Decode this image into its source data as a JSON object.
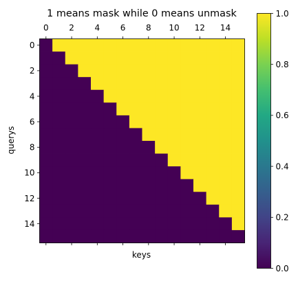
{
  "chart_data": {
    "type": "heatmap",
    "title": "1 means mask while 0 means unmask",
    "xlabel": "keys",
    "ylabel": "querys",
    "rows": 16,
    "cols": 16,
    "rule": "value = 1 where key index > query index, else 0 (upper-triangular mask)",
    "values": [
      [
        0,
        1,
        1,
        1,
        1,
        1,
        1,
        1,
        1,
        1,
        1,
        1,
        1,
        1,
        1,
        1
      ],
      [
        0,
        0,
        1,
        1,
        1,
        1,
        1,
        1,
        1,
        1,
        1,
        1,
        1,
        1,
        1,
        1
      ],
      [
        0,
        0,
        0,
        1,
        1,
        1,
        1,
        1,
        1,
        1,
        1,
        1,
        1,
        1,
        1,
        1
      ],
      [
        0,
        0,
        0,
        0,
        1,
        1,
        1,
        1,
        1,
        1,
        1,
        1,
        1,
        1,
        1,
        1
      ],
      [
        0,
        0,
        0,
        0,
        0,
        1,
        1,
        1,
        1,
        1,
        1,
        1,
        1,
        1,
        1,
        1
      ],
      [
        0,
        0,
        0,
        0,
        0,
        0,
        1,
        1,
        1,
        1,
        1,
        1,
        1,
        1,
        1,
        1
      ],
      [
        0,
        0,
        0,
        0,
        0,
        0,
        0,
        1,
        1,
        1,
        1,
        1,
        1,
        1,
        1,
        1
      ],
      [
        0,
        0,
        0,
        0,
        0,
        0,
        0,
        0,
        1,
        1,
        1,
        1,
        1,
        1,
        1,
        1
      ],
      [
        0,
        0,
        0,
        0,
        0,
        0,
        0,
        0,
        0,
        1,
        1,
        1,
        1,
        1,
        1,
        1
      ],
      [
        0,
        0,
        0,
        0,
        0,
        0,
        0,
        0,
        0,
        0,
        1,
        1,
        1,
        1,
        1,
        1
      ],
      [
        0,
        0,
        0,
        0,
        0,
        0,
        0,
        0,
        0,
        0,
        0,
        1,
        1,
        1,
        1,
        1
      ],
      [
        0,
        0,
        0,
        0,
        0,
        0,
        0,
        0,
        0,
        0,
        0,
        0,
        1,
        1,
        1,
        1
      ],
      [
        0,
        0,
        0,
        0,
        0,
        0,
        0,
        0,
        0,
        0,
        0,
        0,
        0,
        1,
        1,
        1
      ],
      [
        0,
        0,
        0,
        0,
        0,
        0,
        0,
        0,
        0,
        0,
        0,
        0,
        0,
        0,
        1,
        1
      ],
      [
        0,
        0,
        0,
        0,
        0,
        0,
        0,
        0,
        0,
        0,
        0,
        0,
        0,
        0,
        0,
        1
      ],
      [
        0,
        0,
        0,
        0,
        0,
        0,
        0,
        0,
        0,
        0,
        0,
        0,
        0,
        0,
        0,
        0
      ]
    ],
    "x_ticks": [
      0,
      2,
      4,
      6,
      8,
      10,
      12,
      14
    ],
    "x_tick_labels": [
      "0",
      "2",
      "4",
      "6",
      "8",
      "10",
      "12",
      "14"
    ],
    "y_ticks": [
      0,
      2,
      4,
      6,
      8,
      10,
      12,
      14
    ],
    "y_tick_labels": [
      "0",
      "2",
      "4",
      "6",
      "8",
      "10",
      "12",
      "14"
    ],
    "colormap": "viridis",
    "color_low": "#440154",
    "color_high": "#fde725",
    "colorbar": {
      "range": [
        0.0,
        1.0
      ],
      "ticks": [
        0.0,
        0.2,
        0.4,
        0.6,
        0.8,
        1.0
      ],
      "tick_labels": [
        "0.0",
        "0.2",
        "0.4",
        "0.6",
        "0.8",
        "1.0"
      ],
      "position": "right"
    },
    "x_tick_position": "top",
    "grid": false
  }
}
